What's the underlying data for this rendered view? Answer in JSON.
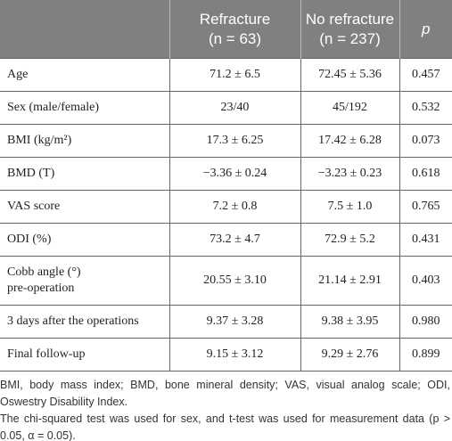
{
  "table": {
    "header": [
      "",
      "Refracture",
      "No refracture",
      "p"
    ],
    "header_sub": [
      "",
      "(n = 63)",
      "(n = 237)",
      ""
    ],
    "rows": [
      [
        [
          "Age"
        ],
        "71.2 ± 6.5",
        "72.45 ± 5.36",
        "0.457"
      ],
      [
        [
          "Sex (male/female)"
        ],
        "23/40",
        "45/192",
        "0.532"
      ],
      [
        [
          "BMI (kg/m²)"
        ],
        "17.3 ± 6.25",
        "17.42 ± 6.28",
        "0.073"
      ],
      [
        [
          "BMD (T)"
        ],
        "−3.36 ± 0.24",
        "−3.23 ± 0.23",
        "0.618"
      ],
      [
        [
          "VAS score"
        ],
        "7.2 ± 0.8",
        "7.5 ± 1.0",
        "0.765"
      ],
      [
        [
          "ODI (%)"
        ],
        "73.2 ± 4.7",
        "72.9 ± 5.2",
        "0.431"
      ],
      [
        [
          "Cobb angle (°)",
          "pre-operation"
        ],
        "20.55 ± 3.10",
        "21.14 ± 2.91",
        "0.403"
      ],
      [
        [
          "3 days after the operations"
        ],
        "9.37 ± 3.28",
        "9.38 ± 3.95",
        "0.980"
      ],
      [
        [
          "Final follow-up"
        ],
        "9.15 ± 3.12",
        "9.29 ± 2.76",
        "0.899"
      ]
    ]
  },
  "footnotes": [
    "BMI, body mass index; BMD, bone mineral density; VAS, visual analog scale; ODI, Oswestry Disability Index.",
    "The chi-squared test was used for sex, and t-test was used for measurement data (p > 0.05, α = 0.05)."
  ]
}
